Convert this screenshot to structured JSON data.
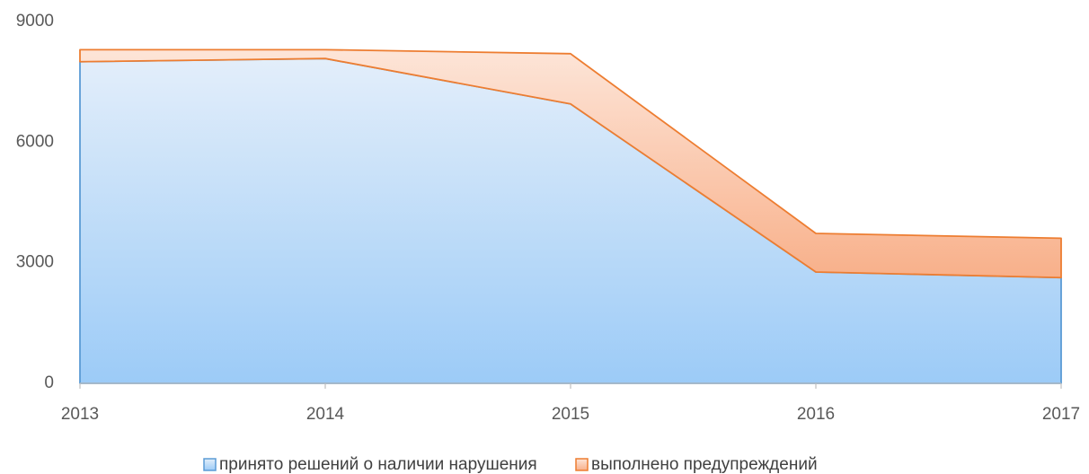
{
  "chart_data": {
    "type": "stacked_area",
    "categories": [
      "2013",
      "2014",
      "2015",
      "2016",
      "2017"
    ],
    "series": [
      {
        "name": "принято решений о наличии нарушения",
        "color": "#5b9bd5",
        "values": [
          8000,
          8080,
          6950,
          2770,
          2630
        ]
      },
      {
        "name": "выполнено предупреждений",
        "color": "#ed7d31",
        "values": [
          300,
          220,
          1250,
          960,
          980
        ]
      }
    ],
    "ylim": [
      0,
      9000
    ],
    "yticks": [
      0,
      3000,
      6000,
      9000
    ],
    "grid": false,
    "legend": "bottom"
  }
}
